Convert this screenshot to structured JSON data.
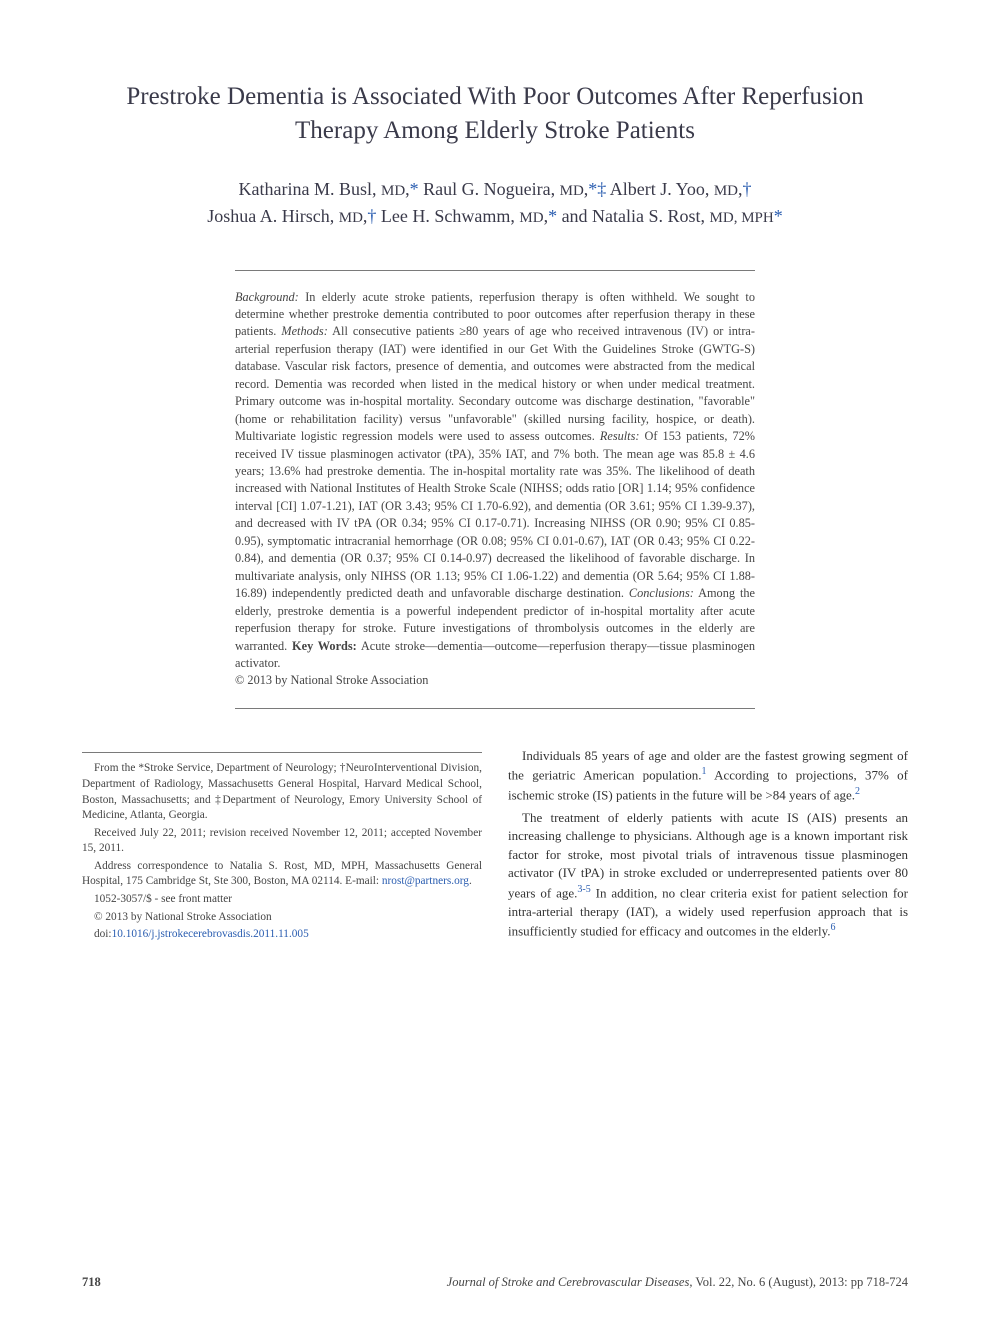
{
  "title": "Prestroke Dementia is Associated With Poor Outcomes After Reperfusion Therapy Among Elderly Stroke Patients",
  "authors_line1_parts": [
    {
      "t": "Katharina M. Busl, ",
      "c": "n"
    },
    {
      "t": "MD",
      "c": "sc"
    },
    {
      "t": ",",
      "c": "n"
    },
    {
      "t": "*",
      "c": "sym"
    },
    {
      "t": " Raul G. Nogueira, ",
      "c": "n"
    },
    {
      "t": "MD",
      "c": "sc"
    },
    {
      "t": ",",
      "c": "n"
    },
    {
      "t": "*‡",
      "c": "sym"
    },
    {
      "t": " Albert J. Yoo, ",
      "c": "n"
    },
    {
      "t": "MD",
      "c": "sc"
    },
    {
      "t": ",",
      "c": "n"
    },
    {
      "t": "†",
      "c": "sym"
    }
  ],
  "authors_line2_parts": [
    {
      "t": "Joshua A. Hirsch, ",
      "c": "n"
    },
    {
      "t": "MD",
      "c": "sc"
    },
    {
      "t": ",",
      "c": "n"
    },
    {
      "t": "†",
      "c": "sym"
    },
    {
      "t": " Lee H. Schwamm, ",
      "c": "n"
    },
    {
      "t": "MD",
      "c": "sc"
    },
    {
      "t": ",",
      "c": "n"
    },
    {
      "t": "*",
      "c": "sym"
    },
    {
      "t": " and Natalia S. Rost, ",
      "c": "n"
    },
    {
      "t": "MD, MPH",
      "c": "sc"
    },
    {
      "t": "*",
      "c": "sym"
    }
  ],
  "abstract": {
    "background_label": "Background:",
    "background": " In elderly acute stroke patients, reperfusion therapy is often withheld. We sought to determine whether prestroke dementia contributed to poor outcomes after reperfusion therapy in these patients. ",
    "methods_label": "Methods:",
    "methods": " All consecutive patients ≥80 years of age who received intravenous (IV) or intra-arterial reperfusion therapy (IAT) were identified in our Get With the Guidelines Stroke (GWTG-S) database. Vascular risk factors, presence of dementia, and outcomes were abstracted from the medical record. Dementia was recorded when listed in the medical history or when under medical treatment. Primary outcome was in-hospital mortality. Secondary outcome was discharge destination, \"favorable\" (home or rehabilitation facility) versus \"unfavorable\" (skilled nursing facility, hospice, or death). Multivariate logistic regression models were used to assess outcomes. ",
    "results_label": "Results:",
    "results": " Of 153 patients, 72% received IV tissue plasminogen activator (tPA), 35% IAT, and 7% both. The mean age was 85.8 ± 4.6 years; 13.6% had prestroke dementia. The in-hospital mortality rate was 35%. The likelihood of death increased with National Institutes of Health Stroke Scale (NIHSS; odds ratio [OR] 1.14; 95% confidence interval [CI] 1.07-1.21), IAT (OR 3.43; 95% CI 1.70-6.92), and dementia (OR 3.61; 95% CI 1.39-9.37), and decreased with IV tPA (OR 0.34; 95% CI 0.17-0.71). Increasing NIHSS (OR 0.90; 95% CI 0.85-0.95), symptomatic intracranial hemorrhage (OR 0.08; 95% CI 0.01-0.67), IAT (OR 0.43; 95% CI 0.22-0.84), and dementia (OR 0.37; 95% CI 0.14-0.97) decreased the likelihood of favorable discharge. In multivariate analysis, only NIHSS (OR 1.13; 95% CI 1.06-1.22) and dementia (OR 5.64; 95% CI 1.88-16.89) independently predicted death and unfavorable discharge destination. ",
    "conclusions_label": "Conclusions:",
    "conclusions": " Among the elderly, prestroke dementia is a powerful independent predictor of in-hospital mortality after acute reperfusion therapy for stroke. Future investigations of thrombolysis outcomes in the elderly are warranted. ",
    "keywords_label": "Key Words:",
    "keywords": " Acute stroke—dementia—outcome—reperfusion therapy—tissue plasminogen activator.",
    "copyright": "© 2013 by National Stroke Association"
  },
  "affiliations": {
    "from": "From the *Stroke Service, Department of Neurology; †NeuroInterventional Division, Department of Radiology, Massachusetts General Hospital, Harvard Medical School, Boston, Massachusetts; and ‡Department of Neurology, Emory University School of Medicine, Atlanta, Georgia.",
    "received": "Received July 22, 2011; revision received November 12, 2011; accepted November 15, 2011.",
    "correspondence": "Address correspondence to Natalia S. Rost, MD, MPH, Massachusetts General Hospital, 175 Cambridge St, Ste 300, Boston, MA 02114. E-mail: ",
    "email": "nrost@partners.org",
    "email_suffix": ".",
    "issn": "1052-3057/$ - see front matter",
    "copyright": "© 2013 by National Stroke Association",
    "doi_prefix": "doi:",
    "doi": "10.1016/j.jstrokecerebrovasdis.2011.11.005"
  },
  "body": {
    "p1_a": "Individuals 85 years of age and older are the fastest growing segment of the geriatric American population.",
    "p1_ref1": "1",
    "p1_b": " According to projections, 37% of ischemic stroke (IS) patients in the future will be >84 years of age.",
    "p1_ref2": "2",
    "p2_a": "The treatment of elderly patients with acute IS (AIS) presents an increasing challenge to physicians. Although age is a known important risk factor for stroke, most pivotal trials of intravenous tissue plasminogen activator (IV tPA) in stroke excluded or underrepresented patients over 80 years of age.",
    "p2_ref1": "3-5",
    "p2_b": " In addition, no clear criteria exist for patient selection for intra-arterial therapy (IAT), a widely used reperfusion approach that is insufficiently studied for efficacy and outcomes in the elderly.",
    "p2_ref2": "6"
  },
  "footer": {
    "page": "718",
    "journal": "Journal of Stroke and Cerebrovascular Diseases,",
    "issue": " Vol. 22, No. 6 (August), 2013: pp 718-724"
  },
  "colors": {
    "link": "#2a5db0",
    "text": "#333333",
    "rule": "#7a7a7a"
  },
  "typography": {
    "title_fontsize": 25,
    "authors_fontsize": 18,
    "abstract_fontsize": 12.3,
    "body_fontsize": 13,
    "affil_fontsize": 11.3,
    "footer_fontsize": 12.5
  }
}
